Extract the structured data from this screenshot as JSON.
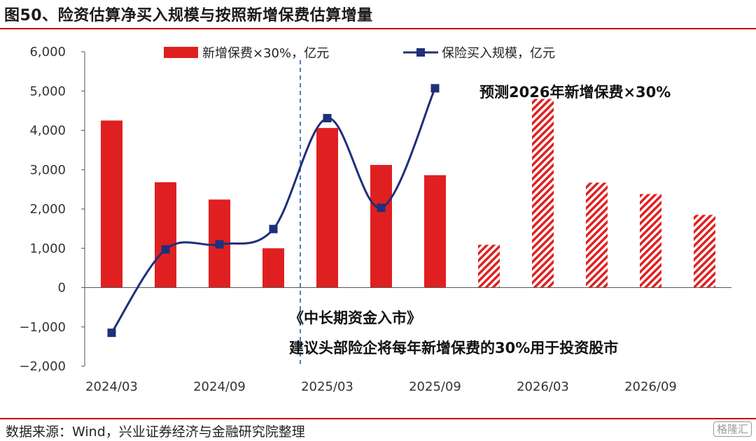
{
  "figure": {
    "title": "图50、险资估算净买入规模与按照新增保费估算增量",
    "source": "数据来源：Wind，兴业证券经济与金融研究院整理",
    "watermark": "格隆汇"
  },
  "chart_data": {
    "type": "bar",
    "title": "",
    "xlabel": "",
    "ylabel": "",
    "ylim": [
      -2000,
      6000
    ],
    "yticks": [
      -2000,
      -1000,
      0,
      1000,
      2000,
      3000,
      4000,
      5000,
      6000
    ],
    "ytick_labels": [
      "−2,000",
      "−1,000",
      "0",
      "1,000",
      "2,000",
      "3,000",
      "4,000",
      "5,000",
      "6,000"
    ],
    "categories": [
      "2024/03",
      "2024/06",
      "2024/09",
      "2024/12",
      "2025/03",
      "2025/06",
      "2025/09",
      "2025/12",
      "2026/03",
      "2026/06",
      "2026/09",
      "2026/12"
    ],
    "xtick_labels": [
      "2024/03",
      "2024/09",
      "2025/03",
      "2025/09",
      "2026/03",
      "2026/09"
    ],
    "grid": false,
    "legend": "top",
    "series": [
      {
        "name": "新增保费×30%，亿元",
        "kind": "bar",
        "color": "#e02020",
        "values": [
          4250,
          2680,
          2240,
          1000,
          4060,
          3120,
          2860,
          1090,
          4800,
          2670,
          2380,
          1850
        ],
        "forecast_from_index": 7
      },
      {
        "name": "保险买入规模，亿元",
        "kind": "line",
        "color": "#1f2f7a",
        "values": [
          -1150,
          970,
          1100,
          1490,
          4310,
          2030,
          5070,
          null,
          null,
          null,
          null,
          null
        ]
      }
    ],
    "annotations": {
      "forecast": "预测2026年新增保费×30%",
      "policy_title": "《中长期资金入市》",
      "policy_body": "建议头部险企将每年新增保费的30%用于投资股市"
    },
    "divider_after_category": "2024/12"
  }
}
